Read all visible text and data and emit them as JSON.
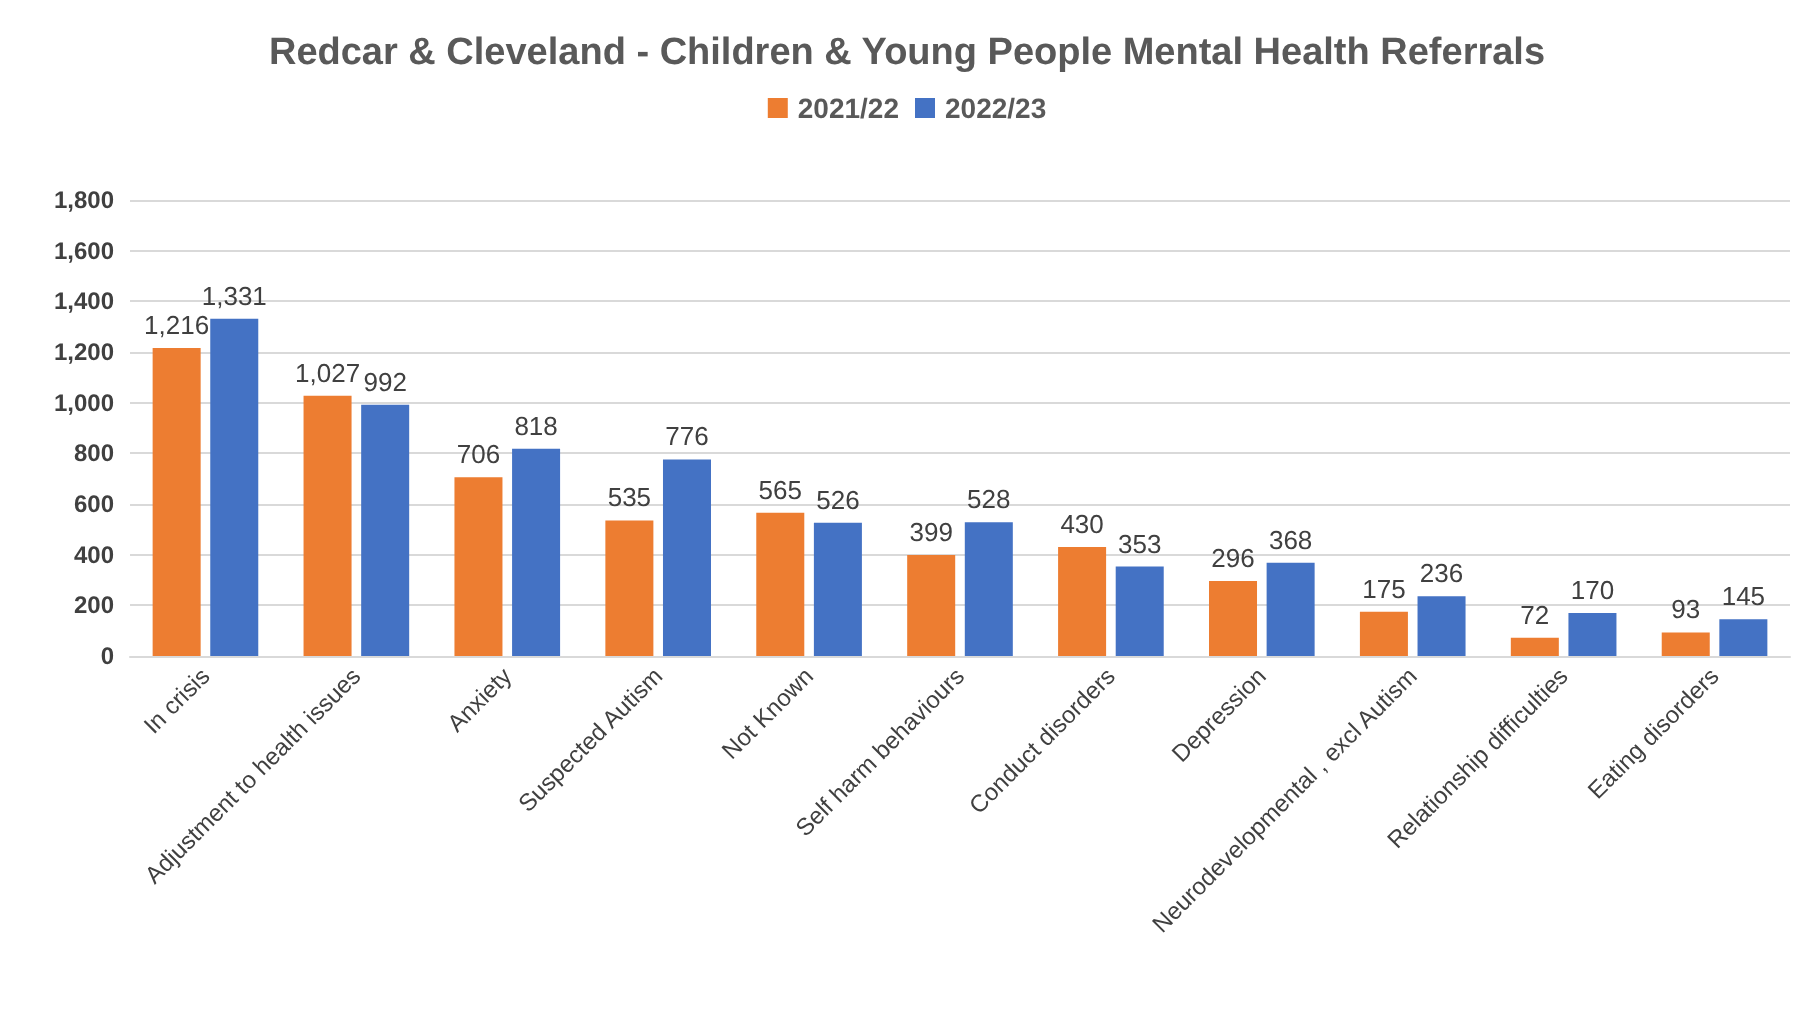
{
  "chart_data": {
    "type": "bar",
    "title": "Redcar & Cleveland - Children & Young People Mental Health Referrals",
    "categories": [
      "In crisis",
      "Adjustment to health issues",
      "Anxiety",
      "Suspected Autism",
      "Not Known",
      "Self harm behaviours",
      "Conduct disorders",
      "Depression",
      "Neurodevelopmental , excl Autism",
      "Relationship difficulties",
      "Eating disorders"
    ],
    "series": [
      {
        "name": "2021/22",
        "color": "#ed7d31",
        "values": [
          1216,
          1027,
          706,
          535,
          565,
          399,
          430,
          296,
          175,
          72,
          93
        ],
        "value_labels": [
          "1,216",
          "1,027",
          "706",
          "535",
          "565",
          "399",
          "430",
          "296",
          "175",
          "72",
          "93"
        ]
      },
      {
        "name": "2022/23",
        "color": "#4472c4",
        "values": [
          1331,
          992,
          818,
          776,
          526,
          528,
          353,
          368,
          236,
          170,
          145
        ],
        "value_labels": [
          "1,331",
          "992",
          "818",
          "776",
          "526",
          "528",
          "353",
          "368",
          "236",
          "170",
          "145"
        ]
      }
    ],
    "ylim": [
      0,
      1800
    ],
    "yticks": [
      0,
      200,
      400,
      600,
      800,
      {
        "value": 1000,
        "label": "1,000"
      },
      {
        "value": 1200,
        "label": "1,200"
      },
      {
        "value": 1400,
        "label": "1,400"
      },
      {
        "value": 1600,
        "label": "1,600"
      },
      {
        "value": 1800,
        "label": "1,800"
      }
    ],
    "grid": "y",
    "legend": "top"
  }
}
